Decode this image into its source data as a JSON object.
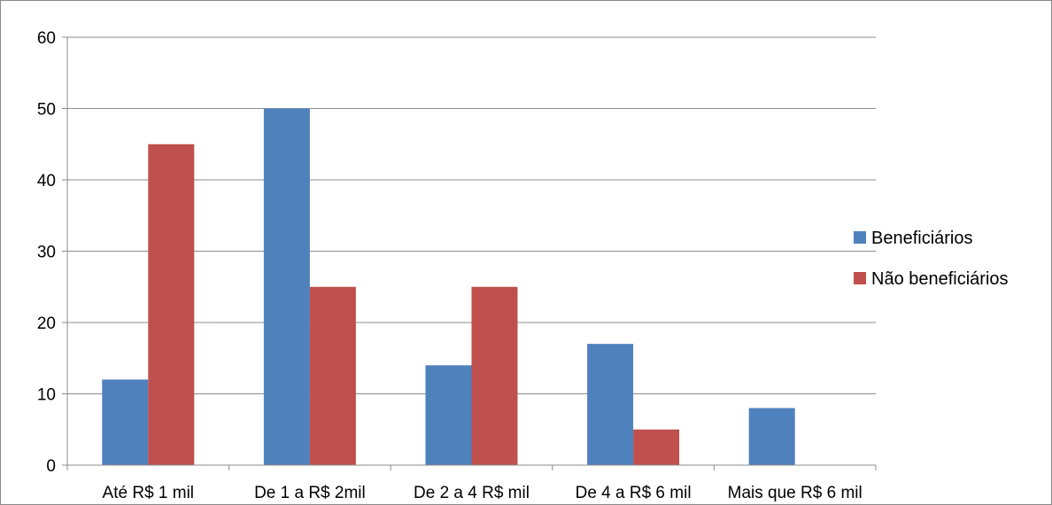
{
  "chart_data": {
    "type": "bar",
    "categories": [
      "Até R$ 1 mil",
      "De 1 a R$ 2mil",
      "De 2 a 4 R$ mil",
      "De 4 a R$ 6 mil",
      "Mais que R$ 6 mil"
    ],
    "series": [
      {
        "name": "Beneficiários",
        "values": [
          12,
          50,
          14,
          17,
          8
        ],
        "color": "#4f81bd"
      },
      {
        "name": "Não beneficiários",
        "values": [
          45,
          25,
          25,
          5,
          0
        ],
        "color": "#c0504d"
      }
    ],
    "title": "",
    "xlabel": "",
    "ylabel": "",
    "ylim": [
      0,
      60
    ],
    "yticks": [
      "0",
      "10",
      "20",
      "30",
      "40",
      "50",
      "60"
    ],
    "grid": true,
    "legend_position": "right"
  }
}
